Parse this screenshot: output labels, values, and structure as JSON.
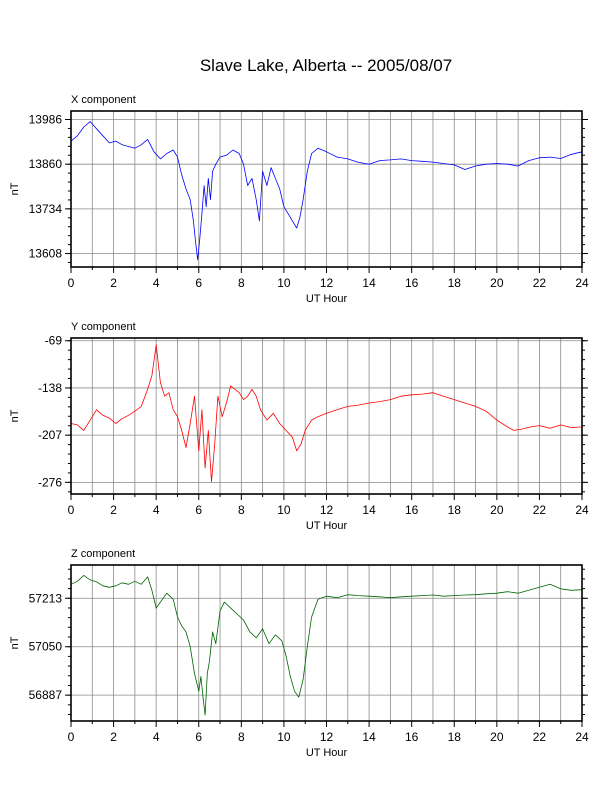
{
  "title": "Slave Lake, Alberta -- 2005/08/07",
  "chart_data": [
    {
      "type": "line",
      "panel_label": "X component",
      "xlabel": "UT Hour",
      "ylabel": "nT",
      "xlim": [
        0,
        24
      ],
      "xticks": [
        0,
        2,
        4,
        6,
        8,
        10,
        12,
        14,
        16,
        18,
        20,
        22,
        24
      ],
      "ylim": [
        13570,
        14010
      ],
      "yticks": [
        13608,
        13734,
        13860,
        13986
      ],
      "grid": true,
      "color": "#0000ff",
      "series": [
        {
          "x": [
            0,
            0.3,
            0.6,
            0.9,
            1.2,
            1.5,
            1.8,
            2.1,
            2.4,
            2.7,
            3.0,
            3.3,
            3.6,
            3.9,
            4.2,
            4.5,
            4.8,
            5.0,
            5.2,
            5.4,
            5.6,
            5.75,
            5.85,
            5.95,
            6.05,
            6.15,
            6.25,
            6.35,
            6.45,
            6.55,
            6.65,
            6.8,
            7.0,
            7.3,
            7.6,
            7.9,
            8.1,
            8.3,
            8.5,
            8.7,
            8.85,
            9.0,
            9.2,
            9.4,
            9.6,
            9.8,
            10.0,
            10.2,
            10.4,
            10.6,
            10.75,
            10.9,
            11.1,
            11.3,
            11.6,
            12.0,
            12.5,
            13.0,
            13.5,
            14.0,
            14.5,
            15.0,
            15.5,
            16.0,
            16.5,
            17.0,
            17.5,
            18.0,
            18.5,
            19.0,
            19.5,
            20.0,
            20.5,
            21.0,
            21.5,
            22.0,
            22.5,
            23.0,
            23.5,
            24.0
          ],
          "values": [
            13925,
            13940,
            13965,
            13980,
            13960,
            13940,
            13920,
            13925,
            13915,
            13910,
            13905,
            13915,
            13930,
            13895,
            13875,
            13890,
            13900,
            13880,
            13830,
            13790,
            13760,
            13700,
            13640,
            13590,
            13650,
            13720,
            13800,
            13740,
            13820,
            13760,
            13840,
            13860,
            13880,
            13885,
            13900,
            13890,
            13860,
            13800,
            13820,
            13760,
            13700,
            13840,
            13800,
            13850,
            13820,
            13790,
            13740,
            13720,
            13700,
            13680,
            13710,
            13760,
            13840,
            13890,
            13905,
            13895,
            13880,
            13875,
            13865,
            13860,
            13870,
            13872,
            13875,
            13870,
            13868,
            13866,
            13862,
            13858,
            13845,
            13855,
            13860,
            13862,
            13860,
            13855,
            13870,
            13878,
            13880,
            13876,
            13888,
            13895
          ]
        }
      ]
    },
    {
      "type": "line",
      "panel_label": "Y component",
      "xlabel": "UT Hour",
      "ylabel": "nT",
      "xlim": [
        0,
        24
      ],
      "xticks": [
        0,
        2,
        4,
        6,
        8,
        10,
        12,
        14,
        16,
        18,
        20,
        22,
        24
      ],
      "ylim": [
        -293,
        -65
      ],
      "yticks": [
        -69,
        -138,
        -207,
        -276
      ],
      "grid": true,
      "color": "#ff0000",
      "series": [
        {
          "x": [
            0,
            0.3,
            0.6,
            0.9,
            1.2,
            1.5,
            1.8,
            2.1,
            2.4,
            2.7,
            3.0,
            3.3,
            3.6,
            3.8,
            4.0,
            4.2,
            4.4,
            4.6,
            4.8,
            5.0,
            5.2,
            5.4,
            5.6,
            5.8,
            6.0,
            6.15,
            6.3,
            6.45,
            6.6,
            6.75,
            6.9,
            7.1,
            7.3,
            7.5,
            7.7,
            7.9,
            8.1,
            8.3,
            8.5,
            8.7,
            8.9,
            9.2,
            9.5,
            9.8,
            10.1,
            10.4,
            10.6,
            10.8,
            11.0,
            11.3,
            11.6,
            12.0,
            12.5,
            13.0,
            13.5,
            14.0,
            14.5,
            15.0,
            15.5,
            16.0,
            16.5,
            17.0,
            17.5,
            18.0,
            18.5,
            19.0,
            19.5,
            20.0,
            20.5,
            20.8,
            21.2,
            21.6,
            22.0,
            22.5,
            23.0,
            23.5,
            24.0
          ],
          "values": [
            -190,
            -192,
            -200,
            -185,
            -170,
            -178,
            -182,
            -190,
            -183,
            -178,
            -172,
            -165,
            -140,
            -120,
            -75,
            -130,
            -150,
            -145,
            -170,
            -180,
            -200,
            -225,
            -190,
            -150,
            -230,
            -170,
            -255,
            -200,
            -275,
            -220,
            -150,
            -180,
            -160,
            -135,
            -140,
            -145,
            -155,
            -150,
            -140,
            -150,
            -170,
            -185,
            -175,
            -190,
            -200,
            -210,
            -230,
            -220,
            -200,
            -185,
            -180,
            -175,
            -170,
            -165,
            -163,
            -160,
            -158,
            -155,
            -150,
            -148,
            -147,
            -145,
            -150,
            -155,
            -160,
            -165,
            -172,
            -185,
            -195,
            -200,
            -198,
            -195,
            -193,
            -197,
            -192,
            -196,
            -195
          ]
        }
      ]
    },
    {
      "type": "line",
      "panel_label": "Z component",
      "xlabel": "UT Hour",
      "ylabel": "nT",
      "xlim": [
        0,
        24
      ],
      "xticks": [
        0,
        2,
        4,
        6,
        8,
        10,
        12,
        14,
        16,
        18,
        20,
        22,
        24
      ],
      "ylim": [
        56800,
        57325
      ],
      "yticks": [
        56887,
        57050,
        57213
      ],
      "grid": true,
      "color": "#006400",
      "series": [
        {
          "x": [
            0,
            0.3,
            0.6,
            0.9,
            1.2,
            1.5,
            1.8,
            2.1,
            2.4,
            2.7,
            3.0,
            3.3,
            3.6,
            3.8,
            4.0,
            4.2,
            4.5,
            4.8,
            5.0,
            5.2,
            5.4,
            5.6,
            5.8,
            6.0,
            6.1,
            6.2,
            6.3,
            6.4,
            6.5,
            6.65,
            6.8,
            7.0,
            7.2,
            7.5,
            7.8,
            8.1,
            8.4,
            8.7,
            9.0,
            9.3,
            9.6,
            9.9,
            10.1,
            10.3,
            10.5,
            10.7,
            10.9,
            11.1,
            11.3,
            11.6,
            12.0,
            12.5,
            13.0,
            13.5,
            14.0,
            14.5,
            15.0,
            15.5,
            16.0,
            16.5,
            17.0,
            17.5,
            18.0,
            18.5,
            19.0,
            19.5,
            20.0,
            20.5,
            21.0,
            21.5,
            22.0,
            22.5,
            23.0,
            23.5,
            24.0
          ],
          "values": [
            57260,
            57270,
            57290,
            57275,
            57268,
            57255,
            57250,
            57255,
            57265,
            57260,
            57270,
            57260,
            57285,
            57240,
            57180,
            57200,
            57230,
            57210,
            57150,
            57120,
            57100,
            57050,
            56960,
            56900,
            56950,
            56880,
            56820,
            56960,
            57000,
            57100,
            57060,
            57170,
            57200,
            57180,
            57160,
            57140,
            57100,
            57080,
            57110,
            57060,
            57090,
            57070,
            57020,
            56950,
            56900,
            56880,
            56940,
            57050,
            57150,
            57210,
            57220,
            57215,
            57225,
            57222,
            57220,
            57218,
            57215,
            57218,
            57220,
            57222,
            57224,
            57220,
            57222,
            57224,
            57225,
            57228,
            57230,
            57235,
            57230,
            57240,
            57250,
            57260,
            57245,
            57240,
            57242
          ]
        }
      ]
    }
  ]
}
